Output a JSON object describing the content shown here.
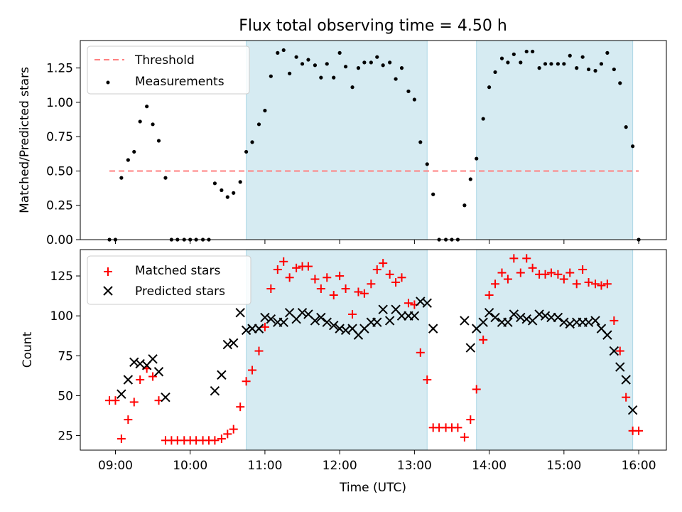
{
  "chart_data": [
    {
      "type": "scatter",
      "title": "Flux total observing time = 4.50 h",
      "xlabel": "",
      "ylabel": "Matched/Predicted stars",
      "xlim": [
        8.53,
        16.37
      ],
      "ylim": [
        0.0,
        1.45
      ],
      "yticks": [
        0.0,
        0.25,
        0.5,
        0.75,
        1.0,
        1.25
      ],
      "ytick_labels": [
        "0.00",
        "0.25",
        "0.50",
        "0.75",
        "1.00",
        "1.25"
      ],
      "shaded_intervals": [
        [
          10.75,
          13.17
        ],
        [
          13.83,
          15.92
        ]
      ],
      "threshold": {
        "name": "Threshold",
        "value": 0.5,
        "x_range": [
          8.92,
          16.0
        ],
        "color": "#ff8080"
      },
      "legend": [
        "Threshold",
        "Measurements"
      ],
      "series": [
        {
          "name": "Measurements",
          "color": "#000000",
          "x": [
            8.92,
            9.0,
            9.08,
            9.17,
            9.25,
            9.33,
            9.42,
            9.5,
            9.58,
            9.67,
            9.75,
            9.83,
            9.92,
            10.0,
            10.08,
            10.17,
            10.25,
            10.33,
            10.42,
            10.5,
            10.58,
            10.67,
            10.75,
            10.83,
            10.92,
            11.0,
            11.08,
            11.17,
            11.25,
            11.33,
            11.42,
            11.5,
            11.58,
            11.67,
            11.75,
            11.83,
            11.92,
            12.0,
            12.08,
            12.17,
            12.25,
            12.33,
            12.42,
            12.5,
            12.58,
            12.67,
            12.75,
            12.83,
            12.92,
            13.0,
            13.08,
            13.17,
            13.25,
            13.33,
            13.42,
            13.5,
            13.58,
            13.67,
            13.75,
            13.83,
            13.92,
            14.0,
            14.08,
            14.17,
            14.25,
            14.33,
            14.42,
            14.5,
            14.58,
            14.67,
            14.75,
            14.83,
            14.92,
            15.0,
            15.08,
            15.17,
            15.25,
            15.33,
            15.42,
            15.5,
            15.58,
            15.67,
            15.75,
            15.83,
            15.92,
            16.0
          ],
          "y": [
            0.0,
            0.0,
            0.45,
            0.58,
            0.64,
            0.86,
            0.97,
            0.84,
            0.72,
            0.45,
            0.0,
            0.0,
            0.0,
            0.0,
            0.0,
            0.0,
            0.0,
            0.41,
            0.36,
            0.31,
            0.34,
            0.42,
            0.64,
            0.71,
            0.84,
            0.94,
            1.19,
            1.36,
            1.38,
            1.21,
            1.33,
            1.28,
            1.31,
            1.27,
            1.18,
            1.28,
            1.18,
            1.36,
            1.26,
            1.11,
            1.25,
            1.29,
            1.29,
            1.33,
            1.27,
            1.29,
            1.17,
            1.25,
            1.08,
            1.02,
            0.71,
            0.55,
            0.33,
            0.0,
            0.0,
            0.0,
            0.0,
            0.25,
            0.44,
            0.59,
            0.88,
            1.11,
            1.22,
            1.32,
            1.29,
            1.35,
            1.29,
            1.37,
            1.37,
            1.25,
            1.28,
            1.28,
            1.28,
            1.28,
            1.34,
            1.25,
            1.33,
            1.24,
            1.23,
            1.28,
            1.36,
            1.24,
            1.14,
            0.82,
            0.68,
            0.0
          ]
        }
      ]
    },
    {
      "type": "scatter",
      "title": "",
      "xlabel": "Time (UTC)",
      "ylabel": "Count",
      "xlim": [
        8.53,
        16.37
      ],
      "ylim": [
        15.9,
        141.5
      ],
      "yticks": [
        25,
        50,
        75,
        100,
        125
      ],
      "ytick_labels": [
        "25",
        "50",
        "75",
        "100",
        "125"
      ],
      "xticks": [
        9,
        10,
        11,
        12,
        13,
        14,
        15,
        16
      ],
      "xtick_labels": [
        "09:00",
        "10:00",
        "11:00",
        "12:00",
        "13:00",
        "14:00",
        "15:00",
        "16:00"
      ],
      "shaded_intervals": [
        [
          10.75,
          13.17
        ],
        [
          13.83,
          15.92
        ]
      ],
      "legend": [
        "Matched stars",
        "Predicted stars"
      ],
      "series": [
        {
          "name": "Matched stars",
          "marker": "+",
          "color": "#ff0000",
          "x": [
            8.92,
            9.0,
            9.08,
            9.17,
            9.25,
            9.33,
            9.42,
            9.5,
            9.58,
            9.67,
            9.75,
            9.83,
            9.92,
            10.0,
            10.08,
            10.17,
            10.25,
            10.33,
            10.42,
            10.5,
            10.58,
            10.67,
            10.75,
            10.83,
            10.92,
            11.0,
            11.08,
            11.17,
            11.25,
            11.33,
            11.42,
            11.5,
            11.58,
            11.67,
            11.75,
            11.83,
            11.92,
            12.0,
            12.08,
            12.17,
            12.25,
            12.33,
            12.42,
            12.5,
            12.58,
            12.67,
            12.75,
            12.83,
            12.92,
            13.0,
            13.08,
            13.17,
            13.25,
            13.33,
            13.42,
            13.5,
            13.58,
            13.67,
            13.75,
            13.83,
            13.92,
            14.0,
            14.08,
            14.17,
            14.25,
            14.33,
            14.42,
            14.5,
            14.58,
            14.67,
            14.75,
            14.83,
            14.92,
            15.0,
            15.08,
            15.17,
            15.25,
            15.33,
            15.42,
            15.5,
            15.58,
            15.67,
            15.75,
            15.83,
            15.92,
            16.0
          ],
          "y": [
            47,
            47,
            23,
            35,
            46,
            60,
            67,
            62,
            47,
            22,
            22,
            22,
            22,
            22,
            22,
            22,
            22,
            22,
            23,
            26,
            29,
            43,
            59,
            66,
            78,
            93,
            117,
            129,
            134,
            124,
            130,
            131,
            131,
            123,
            117,
            124,
            113,
            125,
            117,
            101,
            115,
            114,
            120,
            129,
            133,
            126,
            121,
            124,
            108,
            107,
            77,
            60,
            30,
            30,
            30,
            30,
            30,
            24,
            35,
            54,
            85,
            113,
            120,
            127,
            123,
            136,
            127,
            136,
            130,
            126,
            126,
            127,
            126,
            123,
            127,
            120,
            129,
            121,
            120,
            119,
            120,
            97,
            78,
            49,
            28,
            28
          ]
        },
        {
          "name": "Predicted stars",
          "marker": "x",
          "color": "#000000",
          "x": [
            9.08,
            9.17,
            9.25,
            9.33,
            9.42,
            9.5,
            9.58,
            9.67,
            10.33,
            10.42,
            10.5,
            10.58,
            10.67,
            10.75,
            10.83,
            10.92,
            11.0,
            11.08,
            11.17,
            11.25,
            11.33,
            11.42,
            11.5,
            11.58,
            11.67,
            11.75,
            11.83,
            11.92,
            12.0,
            12.08,
            12.17,
            12.25,
            12.33,
            12.42,
            12.5,
            12.58,
            12.67,
            12.75,
            12.83,
            12.92,
            13.0,
            13.08,
            13.17,
            13.25,
            13.67,
            13.75,
            13.83,
            13.92,
            14.0,
            14.08,
            14.17,
            14.25,
            14.33,
            14.42,
            14.5,
            14.58,
            14.67,
            14.75,
            14.83,
            14.92,
            15.0,
            15.08,
            15.17,
            15.25,
            15.33,
            15.42,
            15.5,
            15.58,
            15.67,
            15.75,
            15.83,
            15.92
          ],
          "y": [
            51,
            60,
            71,
            70,
            69,
            73,
            65,
            49,
            53,
            63,
            82,
            83,
            102,
            91,
            92,
            92,
            99,
            98,
            96,
            96,
            102,
            98,
            102,
            101,
            97,
            99,
            96,
            94,
            92,
            91,
            92,
            88,
            92,
            96,
            96,
            104,
            97,
            104,
            100,
            100,
            100,
            109,
            108,
            92,
            97,
            80,
            92,
            96,
            102,
            99,
            96,
            96,
            101,
            99,
            98,
            97,
            101,
            100,
            99,
            99,
            96,
            95,
            96,
            96,
            96,
            97,
            92,
            88,
            78,
            68,
            60,
            41
          ]
        }
      ]
    }
  ]
}
